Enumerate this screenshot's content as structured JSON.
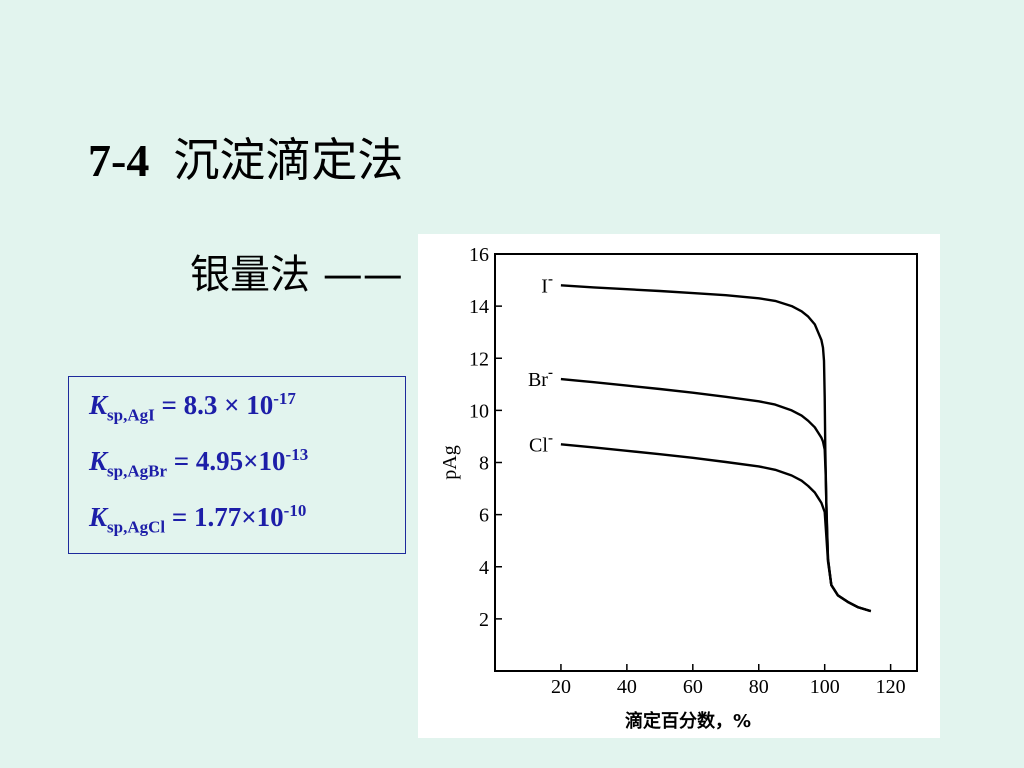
{
  "slide": {
    "title_number": "7-4",
    "title_text": "沉淀滴定法",
    "subtitle": "银量法 ——"
  },
  "ksp": [
    {
      "k": "K",
      "sub": "sp,AgI",
      "eq": " =  8.3 × 10",
      "sup": "-17"
    },
    {
      "k": "K",
      "sub": "sp,AgBr",
      "eq": " = 4.95×10",
      "sup": "-13"
    },
    {
      "k": "K",
      "sub": "sp,AgCl",
      "eq": " = 1.77×10",
      "sup": "-10"
    }
  ],
  "colors": {
    "background": "#e2f4ee",
    "ksp_text": "#1d1ea8",
    "ksp_border": "#1d2a9c"
  },
  "chart_data": {
    "type": "line",
    "xlabel": "滴定百分数，%",
    "ylabel": "pAg",
    "xlim": [
      0,
      128
    ],
    "ylim": [
      0,
      16
    ],
    "xticks": [
      20,
      40,
      60,
      80,
      100,
      120
    ],
    "yticks": [
      2,
      4,
      6,
      8,
      10,
      12,
      14,
      16
    ],
    "grid": false,
    "series": [
      {
        "name": "I⁻",
        "label_base": "I",
        "label_sup": "-",
        "x": [
          20,
          30,
          40,
          50,
          60,
          70,
          80,
          85,
          90,
          93,
          95,
          97,
          98,
          99,
          99.5,
          99.8,
          100,
          100.2,
          100.5,
          101,
          102,
          104,
          107,
          110,
          114
        ],
        "y": [
          14.8,
          14.72,
          14.65,
          14.58,
          14.5,
          14.42,
          14.3,
          14.2,
          14.0,
          13.8,
          13.6,
          13.3,
          13.0,
          12.7,
          12.4,
          11.9,
          10.5,
          8.5,
          6.5,
          4.3,
          3.3,
          2.9,
          2.65,
          2.45,
          2.3
        ]
      },
      {
        "name": "Br⁻",
        "label_base": "Br",
        "label_sup": "-",
        "x": [
          20,
          30,
          40,
          50,
          60,
          70,
          80,
          85,
          90,
          93,
          95,
          97,
          98,
          99,
          99.5,
          100,
          100.3,
          100.6,
          101,
          102,
          104,
          107,
          110,
          114
        ],
        "y": [
          11.2,
          11.08,
          10.95,
          10.82,
          10.68,
          10.52,
          10.35,
          10.22,
          10.0,
          9.8,
          9.6,
          9.35,
          9.15,
          8.95,
          8.8,
          8.5,
          7.5,
          5.8,
          4.3,
          3.3,
          2.9,
          2.65,
          2.45,
          2.3
        ]
      },
      {
        "name": "Cl⁻",
        "label_base": "Cl",
        "label_sup": "-",
        "x": [
          20,
          30,
          40,
          50,
          60,
          70,
          80,
          85,
          90,
          93,
          95,
          97,
          98,
          99,
          100,
          100.5,
          101,
          102,
          104,
          107,
          110,
          114
        ],
        "y": [
          8.7,
          8.58,
          8.45,
          8.32,
          8.18,
          8.02,
          7.85,
          7.72,
          7.5,
          7.3,
          7.1,
          6.85,
          6.65,
          6.45,
          6.1,
          5.2,
          4.2,
          3.3,
          2.9,
          2.65,
          2.45,
          2.3
        ]
      }
    ]
  }
}
